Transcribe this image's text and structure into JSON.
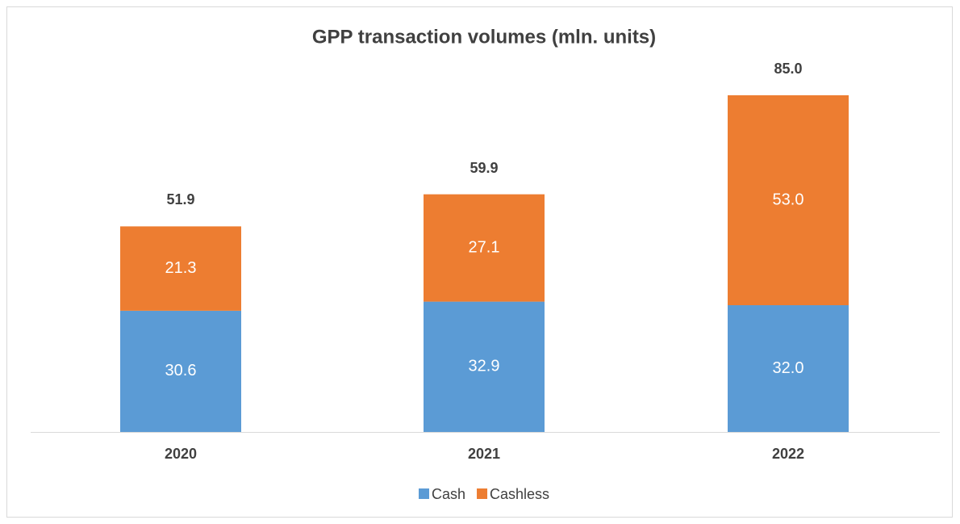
{
  "chart_data": {
    "type": "stacked_bar",
    "title": "GPP transaction volumes (mln. units)",
    "categories": [
      "2020",
      "2021",
      "2022"
    ],
    "series": [
      {
        "name": "Cash",
        "color": "#5b9bd5",
        "values": [
          30.6,
          32.9,
          32
        ],
        "value_labels": [
          "30.6",
          "32.9",
          "32.0"
        ]
      },
      {
        "name": "Cashless",
        "color": "#ed7d31",
        "values": [
          21.3,
          27.1,
          53
        ],
        "value_labels": [
          "21.3",
          "27.1",
          "53.0"
        ]
      }
    ],
    "totals": [
      51.9,
      59.9,
      85
    ],
    "total_labels": [
      "51.9",
      "59.9",
      "85.0"
    ],
    "legend": "bottom"
  }
}
